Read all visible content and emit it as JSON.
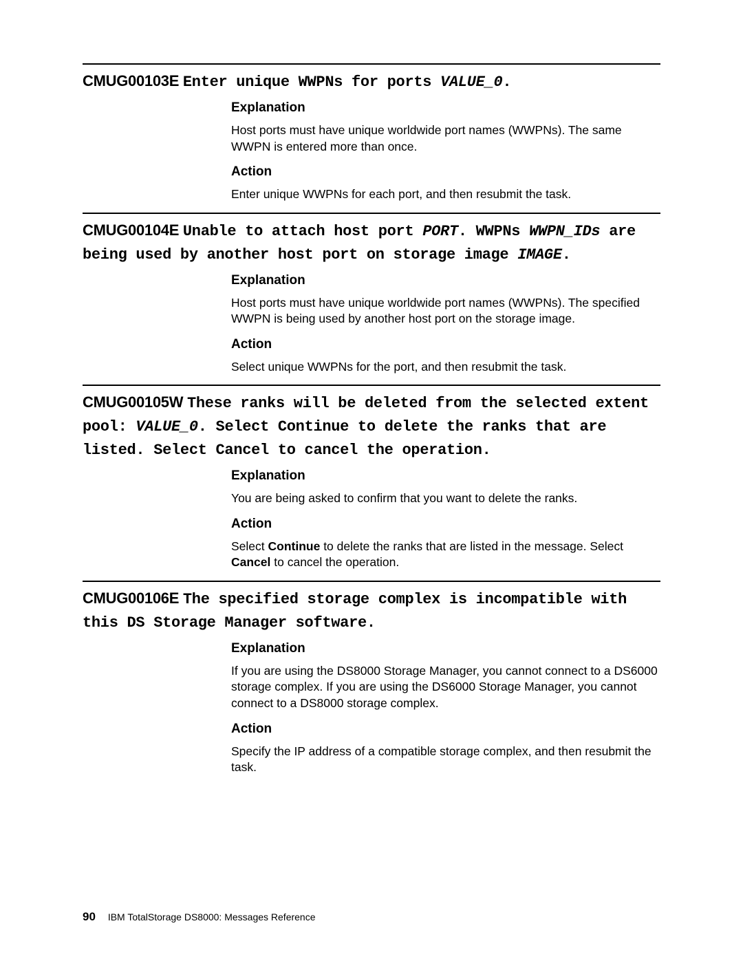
{
  "labels": {
    "explanation": "Explanation",
    "action": "Action",
    "continue": "Continue",
    "cancel": "Cancel"
  },
  "messages": [
    {
      "code": "CMUG00103E",
      "title_pre": "Enter unique WWPNs for ports ",
      "var1": "VALUE_0",
      "title_post": ".",
      "explanation": "Host ports must have unique worldwide port names (WWPNs). The same WWPN is entered more than once.",
      "action": "Enter unique WWPNs for each port, and then resubmit the task."
    },
    {
      "code": "CMUG00104E",
      "title_pre": "Unable to attach host port ",
      "var1": "PORT",
      "title_mid1": ". WWPNs ",
      "var2": "WWPN_IDs",
      "title_mid2": " are being used by another host port on storage image ",
      "var3": "IMAGE",
      "title_post": ".",
      "explanation": "Host ports must have unique worldwide port names (WWPNs). The specified WWPN is being used by another host port on the storage image.",
      "action": "Select unique WWPNs for the port, and then resubmit the task."
    },
    {
      "code": "CMUG00105W",
      "title_pre": "These ranks will be deleted from the selected extent pool: ",
      "var1": "VALUE_0",
      "title_post": ". Select Continue to delete the ranks that are listed. Select Cancel to cancel the operation.",
      "explanation": "You are being asked to confirm that you want to delete the ranks.",
      "action_pre": "Select ",
      "action_mid": " to delete the ranks that are listed in the message. Select ",
      "action_post": " to cancel the operation."
    },
    {
      "code": "CMUG00106E",
      "title_pre": "The specified storage complex is incompatible with this DS Storage Manager software.",
      "explanation": "If you are using the DS8000 Storage Manager, you cannot connect to a DS6000 storage complex. If you are using the DS6000 Storage Manager, you cannot connect to a DS8000 storage complex.",
      "action": "Specify the IP address of a compatible storage complex, and then resubmit the task."
    }
  ],
  "footer": {
    "page": "90",
    "text": "IBM TotalStorage DS8000: Messages Reference"
  }
}
